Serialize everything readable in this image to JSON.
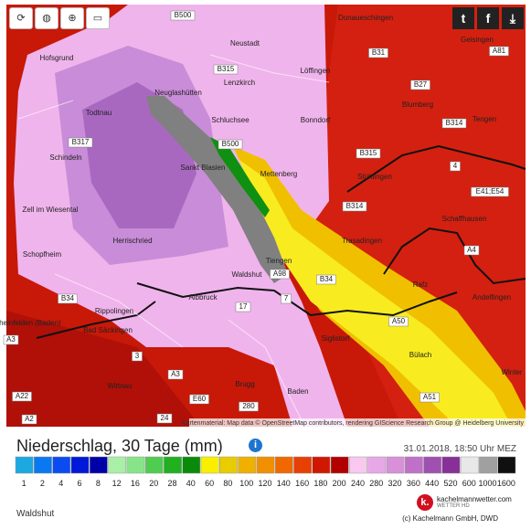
{
  "map": {
    "places": [
      "Donaueschingen",
      "B500",
      "Neustadt",
      "Hofsgrund",
      "B31",
      "Geisingen",
      "A81",
      "B315",
      "Löffingen",
      "Lenzkirch",
      "B27",
      "Neuglashütten",
      "Todtnau",
      "Schluchsee",
      "Bonndorf",
      "Blumberg",
      "B314",
      "Tengen",
      "B317",
      "B500",
      "Schindeln",
      "Sankt Blasien",
      "Mettenberg",
      "B315",
      "Stühlingen",
      "4",
      "E41;E54",
      "Zell im Wiesental",
      "B314",
      "Schaffhausen",
      "Herrischried",
      "Trasadingen",
      "Schopfheim",
      "A4",
      "Tiengen",
      "Waldshut",
      "A98",
      "B34",
      "Rafz",
      "B34",
      "Albbruck",
      "7",
      "Andelfingen",
      "Rheinfelden (Baden)",
      "17",
      "Rippolingen",
      "A50",
      "Bad Säckingen",
      "Siglistorf",
      "A3",
      "3",
      "Bülach",
      "A3",
      "Wittnau",
      "Brugg",
      "Baden",
      "A51",
      "Winter",
      "E60",
      "A22",
      "280",
      "24",
      "A2"
    ],
    "attribution": "Kartenmaterial: Map data © OpenStreetMap contributors, rendering GIScience Research Group @ Heidelberg University"
  },
  "header": {
    "title": "Niederschlag, 30 Tage (mm)",
    "timestamp": "31.01.2018, 18:50 Uhr MEZ"
  },
  "legend": [
    {
      "label": "1",
      "color": "#1ea8e0"
    },
    {
      "label": "2",
      "color": "#0a78f0"
    },
    {
      "label": "4",
      "color": "#0a4cf0"
    },
    {
      "label": "6",
      "color": "#0018d8"
    },
    {
      "label": "8",
      "color": "#0000a8"
    },
    {
      "label": "12",
      "color": "#a8f0a8"
    },
    {
      "label": "16",
      "color": "#88e488"
    },
    {
      "label": "20",
      "color": "#50cc50"
    },
    {
      "label": "28",
      "color": "#20b020"
    },
    {
      "label": "40",
      "color": "#0a8a0a"
    },
    {
      "label": "60",
      "color": "#f8f000"
    },
    {
      "label": "80",
      "color": "#e8cc00"
    },
    {
      "label": "100",
      "color": "#f0b000"
    },
    {
      "label": "120",
      "color": "#f09000"
    },
    {
      "label": "140",
      "color": "#f06800"
    },
    {
      "label": "160",
      "color": "#e84000"
    },
    {
      "label": "180",
      "color": "#d01800"
    },
    {
      "label": "200",
      "color": "#b00000"
    },
    {
      "label": "240",
      "color": "#f8c8f0"
    },
    {
      "label": "280",
      "color": "#e8a8e8"
    },
    {
      "label": "320",
      "color": "#d890d8"
    },
    {
      "label": "360",
      "color": "#c070c8"
    },
    {
      "label": "440",
      "color": "#a050b0"
    },
    {
      "label": "520",
      "color": "#883098"
    },
    {
      "label": "600",
      "color": "#e8e8e8"
    },
    {
      "label": "1000",
      "color": "#a0a0a0"
    },
    {
      "label": "1600",
      "color": "#101010"
    }
  ],
  "footer": {
    "location": "Waldshut",
    "brand": "kachelmannwetter.com",
    "brand_sub": "WETTER HD",
    "copyright": "(c) Kachelmann GmbH, DWD"
  }
}
